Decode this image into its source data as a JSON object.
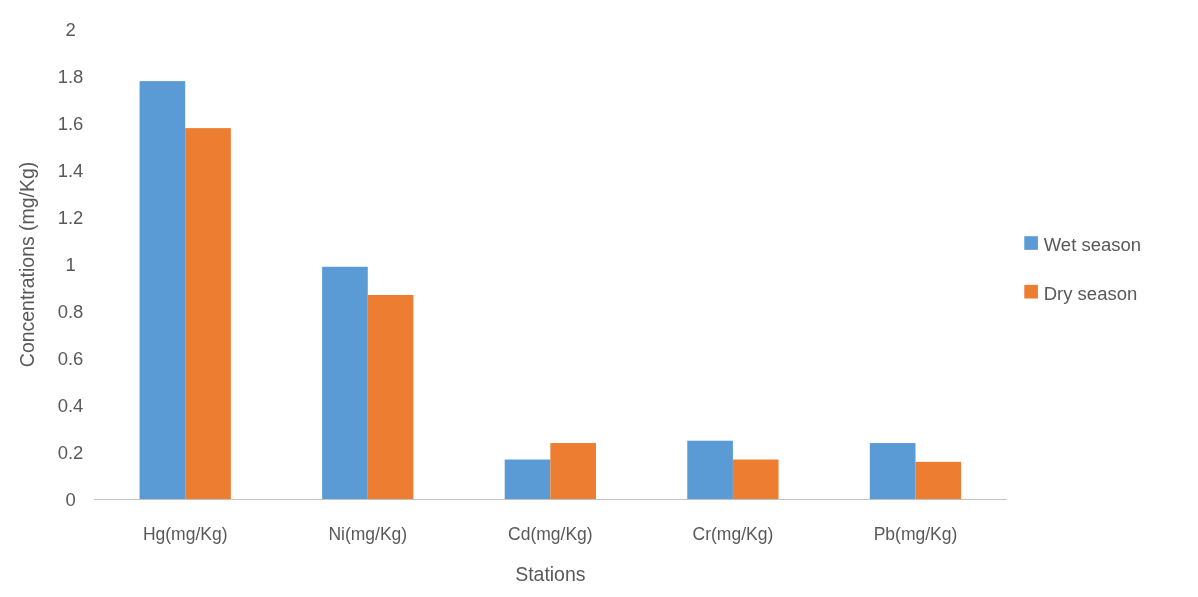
{
  "chart_data": {
    "type": "bar",
    "xlabel": "Stations",
    "ylabel": "Concentrations (mg/Kg)",
    "categories": [
      "Hg(mg/Kg)",
      "Ni(mg/Kg)",
      "Cd(mg/Kg)",
      "Cr(mg/Kg)",
      "Pb(mg/Kg)"
    ],
    "series": [
      {
        "name": "Wet season",
        "color": "#5b9bd5",
        "values": [
          1.78,
          0.99,
          0.17,
          0.25,
          0.24
        ]
      },
      {
        "name": "Dry season",
        "color": "#ed7d31",
        "values": [
          1.58,
          0.87,
          0.24,
          0.17,
          0.16
        ]
      }
    ],
    "ylim": [
      0,
      2
    ],
    "yticks": [
      0,
      0.2,
      0.4,
      0.6,
      0.8,
      1,
      1.2,
      1.4,
      1.6,
      1.8,
      2
    ],
    "grid": false,
    "legend": "right"
  }
}
